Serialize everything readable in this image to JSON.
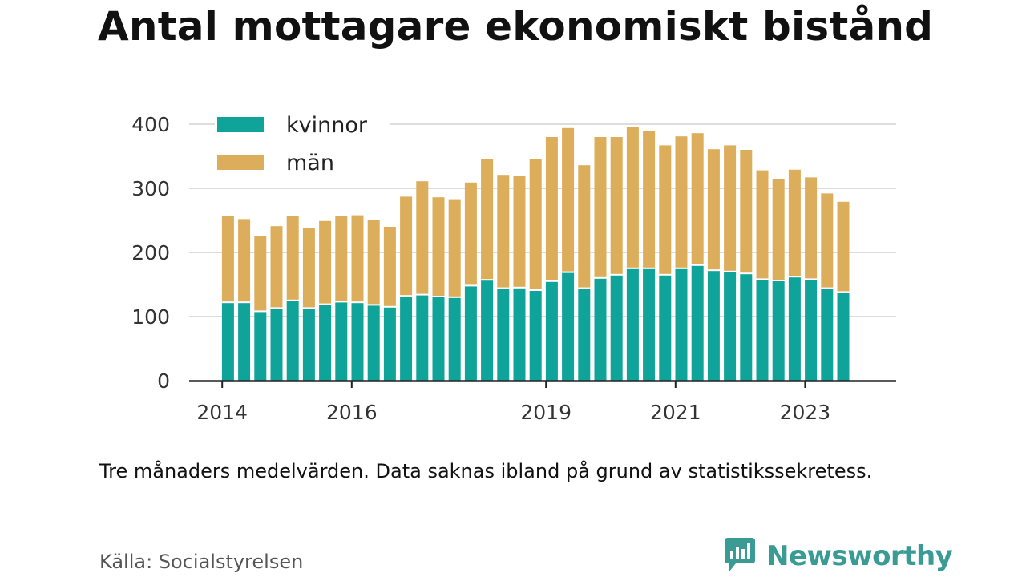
{
  "title": "Antal mottagare ekonomiskt bistånd",
  "note": "Tre månaders medelvärden. Data saknas ibland på grund av statistikssekretess.",
  "source": "Källa: Socialstyrelsen",
  "brand": {
    "name": "Newsworthy",
    "icon": "newsworthy-logo-icon",
    "color": "#3a9a94"
  },
  "colors": {
    "kvinnor": "#0fa39a",
    "man": "#dcad5b",
    "grid": "#dddddd",
    "axis": "#222222"
  },
  "chart_data": {
    "type": "bar",
    "stacked": true,
    "title": "Antal mottagare ekonomiskt bistånd",
    "xlabel": "",
    "ylabel": "",
    "ylim": [
      0,
      400
    ],
    "yticks": [
      0,
      100,
      200,
      300,
      400
    ],
    "xticks": [
      "2014",
      "2016",
      "2019",
      "2021",
      "2023"
    ],
    "grid": "horizontal",
    "legend_position": "top-left",
    "x": [
      "2014-Q2",
      "2014-Q3",
      "2014-Q4",
      "2015-Q1",
      "2015-Q2",
      "2015-Q3",
      "2015-Q4",
      "2016-Q1",
      "2016-Q2",
      "2016-Q3",
      "2016-Q4",
      "2017-Q1",
      "2017-Q2",
      "2017-Q3",
      "2017-Q4",
      "2018-Q1",
      "2018-Q2",
      "2018-Q3",
      "2018-Q4",
      "2019-Q1",
      "2019-Q2",
      "2019-Q3",
      "2019-Q4",
      "2020-Q1",
      "2020-Q2",
      "2020-Q3",
      "2020-Q4",
      "2021-Q1",
      "2021-Q2",
      "2021-Q3",
      "2021-Q4",
      "2022-Q1",
      "2022-Q2",
      "2022-Q3",
      "2022-Q4",
      "2023-Q1",
      "2023-Q2",
      "2023-Q3",
      "2023-Q4"
    ],
    "series": [
      {
        "name": "kvinnor",
        "color": "#0fa39a",
        "values": [
          121,
          121,
          107,
          112,
          124,
          112,
          118,
          122,
          121,
          117,
          114,
          131,
          133,
          130,
          129,
          147,
          156,
          143,
          144,
          140,
          154,
          168,
          143,
          159,
          164,
          174,
          174,
          164,
          174,
          179,
          171,
          169,
          166,
          157,
          155,
          161,
          157,
          143,
          137
        ]
      },
      {
        "name": "män",
        "color": "#dcad5b",
        "values": [
          136,
          131,
          119,
          129,
          133,
          126,
          131,
          135,
          137,
          133,
          126,
          156,
          178,
          156,
          154,
          162,
          189,
          178,
          175,
          205,
          226,
          226,
          193,
          221,
          216,
          222,
          216,
          203,
          207,
          207,
          190,
          198,
          194,
          171,
          160,
          168,
          160,
          149,
          142
        ]
      }
    ]
  }
}
